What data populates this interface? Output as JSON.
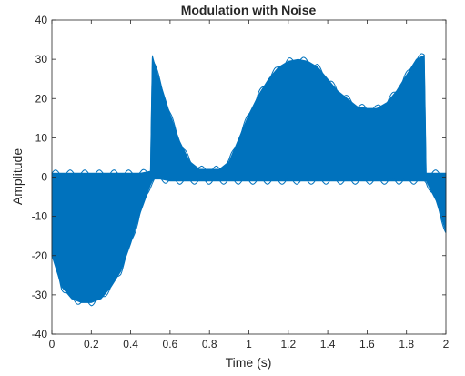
{
  "chart_data": {
    "type": "area",
    "title": "Modulation with Noise",
    "xlabel": "Time (s)",
    "ylabel": "Amplitude",
    "xlim": [
      0,
      2
    ],
    "ylim": [
      -40,
      40
    ],
    "x_ticks": [
      "0",
      "0.2",
      "0.4",
      "0.6",
      "0.8",
      "1",
      "1.2",
      "1.4",
      "1.6",
      "1.8",
      "2"
    ],
    "y_ticks": [
      "-40",
      "-30",
      "-20",
      "-10",
      "0",
      "10",
      "20",
      "30",
      "40"
    ],
    "grid": false,
    "box": true,
    "series_color": "#0072BD",
    "series": [
      {
        "x": [
          0,
          0.05,
          0.1,
          0.15,
          0.2,
          0.25,
          0.3,
          0.35,
          0.4,
          0.45,
          0.5,
          0.51,
          0.52,
          0.55,
          0.6,
          0.65,
          0.7,
          0.75,
          0.8,
          0.85,
          0.9,
          0.95,
          1.0,
          1.05,
          1.1,
          1.15,
          1.2,
          1.25,
          1.3,
          1.35,
          1.4,
          1.45,
          1.5,
          1.55,
          1.6,
          1.65,
          1.7,
          1.75,
          1.8,
          1.85,
          1.89,
          1.9,
          1.95,
          2.0
        ],
        "upper": [
          1,
          1,
          1,
          1,
          1,
          1,
          1,
          1,
          1,
          1,
          1.5,
          31,
          29,
          24,
          16,
          9,
          4,
          2,
          2,
          2,
          4,
          10,
          16,
          21,
          25,
          28,
          29.5,
          30,
          29.5,
          28,
          25,
          22,
          20,
          18,
          17.5,
          17.5,
          19,
          22,
          26,
          30,
          31,
          1,
          1,
          1
        ],
        "lower": [
          -20,
          -28,
          -31,
          -32,
          -32,
          -31,
          -28,
          -24,
          -17,
          -9,
          -2,
          -1,
          -0.5,
          -0.5,
          -1,
          -1,
          -1,
          -1,
          -1,
          -1,
          -1,
          -1,
          -1,
          -1,
          -1,
          -1,
          -1,
          -1,
          -1,
          -1,
          -1,
          -1,
          -1,
          -1,
          -1,
          -1,
          -1,
          -1,
          -1,
          -1,
          -1,
          -1,
          -6,
          -14
        ]
      }
    ]
  }
}
